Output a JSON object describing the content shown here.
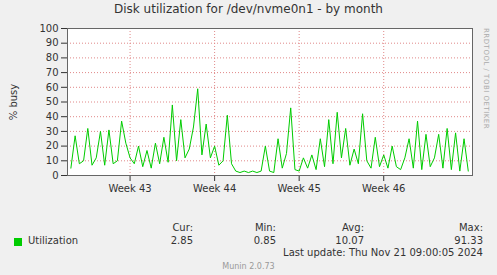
{
  "chart_data": {
    "type": "line",
    "title": "Disk utilization for /dev/nvme0n1 - by month",
    "y_label": "% busy",
    "x": [
      42.3,
      42.35,
      42.4,
      42.45,
      42.5,
      42.55,
      42.6,
      42.65,
      42.7,
      42.75,
      42.8,
      42.85,
      42.9,
      42.95,
      43.0,
      43.05,
      43.1,
      43.15,
      43.2,
      43.25,
      43.3,
      43.35,
      43.4,
      43.45,
      43.5,
      43.55,
      43.6,
      43.65,
      43.7,
      43.75,
      43.8,
      43.85,
      43.9,
      43.95,
      44.0,
      44.05,
      44.1,
      44.15,
      44.2,
      44.25,
      44.3,
      44.35,
      44.4,
      44.45,
      44.5,
      44.55,
      44.6,
      44.65,
      44.7,
      44.75,
      44.8,
      44.85,
      44.9,
      44.95,
      45.0,
      45.05,
      45.1,
      45.15,
      45.2,
      45.25,
      45.3,
      45.35,
      45.4,
      45.45,
      45.5,
      45.55,
      45.6,
      45.65,
      45.7,
      45.75,
      45.8,
      45.85,
      45.9,
      45.95,
      46.0,
      46.05,
      46.1,
      46.15,
      46.2,
      46.25,
      46.3,
      46.35,
      46.4,
      46.45,
      46.5,
      46.55,
      46.6,
      46.65,
      46.7,
      46.75,
      46.8,
      46.85,
      46.9,
      46.95,
      47.0
    ],
    "series": [
      {
        "name": "Utilization",
        "color": "#00cc00",
        "values": [
          5,
          27,
          8,
          10,
          32,
          7,
          12,
          30,
          7,
          31,
          8,
          10,
          37,
          22,
          12,
          8,
          20,
          6,
          17,
          5,
          22,
          8,
          26,
          9,
          48,
          10,
          38,
          12,
          18,
          33,
          59,
          14,
          35,
          12,
          20,
          7,
          10,
          41,
          8,
          3,
          2,
          3,
          2,
          3,
          2,
          3,
          20,
          3,
          2,
          25,
          5,
          15,
          46,
          4,
          3,
          12,
          5,
          14,
          4,
          25,
          6,
          38,
          8,
          43,
          12,
          32,
          7,
          18,
          8,
          42,
          10,
          5,
          26,
          6,
          14,
          5,
          20,
          6,
          4,
          12,
          25,
          5,
          37,
          4,
          28,
          6,
          12,
          28,
          5,
          32,
          4,
          29,
          3,
          25,
          3
        ]
      }
    ],
    "xlim": [
      42.26,
      47.05
    ],
    "xticks": [
      {
        "value": 43,
        "label": "Week 43"
      },
      {
        "value": 44,
        "label": "Week 44"
      },
      {
        "value": 45,
        "label": "Week 45"
      },
      {
        "value": 46,
        "label": "Week 46"
      }
    ],
    "ylim": [
      0,
      100
    ],
    "yticks": [
      0,
      10,
      20,
      30,
      40,
      50,
      60,
      70,
      80,
      90,
      100
    ],
    "grid": true,
    "legend": "bottom",
    "legend_stats": {
      "labels": [
        "Cur:",
        "Min:",
        "Avg:",
        "Max:"
      ],
      "values": [
        2.85,
        0.85,
        10.07,
        91.33
      ]
    },
    "last_update": "Last update: Thu Nov 21 09:00:05 2024",
    "side_text": "RRDTOOL / TOBI OETIKER",
    "footer": "Munin 2.0.73"
  }
}
